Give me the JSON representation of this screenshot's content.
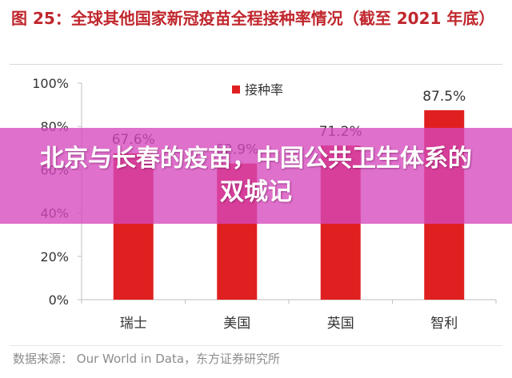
{
  "title": "图 25：全球其他国家新冠疫苗全程接种率情况（截至 2021 年底）",
  "source": "数据来源：  Our World in Data，东方证券研究所",
  "banner": "北京与长春的疫苗，中国公共卫生体系的双城记",
  "colors": {
    "title": "#c0272d",
    "bar": "#e02020",
    "axis": "#bfbfbf",
    "text": "#333333",
    "banner": "#d648be"
  },
  "chart_data": {
    "type": "bar",
    "title": "图 25：全球其他国家新冠疫苗全程接种率情况（截至 2021 年底）",
    "categories": [
      "瑞士",
      "美国",
      "英国",
      "智利"
    ],
    "series": [
      {
        "name": "接种率",
        "values": [
          67.6,
          62.9,
          71.2,
          87.5
        ]
      }
    ],
    "value_labels": [
      "67.6%",
      "62.9%",
      "71.2%",
      "87.5%"
    ],
    "yticks": [
      "0%",
      "20%",
      "40%",
      "60%",
      "80%",
      "100%"
    ],
    "ylim": [
      0,
      100
    ],
    "xlabel": "",
    "ylabel": "",
    "grid": false,
    "legend": "top-center"
  }
}
